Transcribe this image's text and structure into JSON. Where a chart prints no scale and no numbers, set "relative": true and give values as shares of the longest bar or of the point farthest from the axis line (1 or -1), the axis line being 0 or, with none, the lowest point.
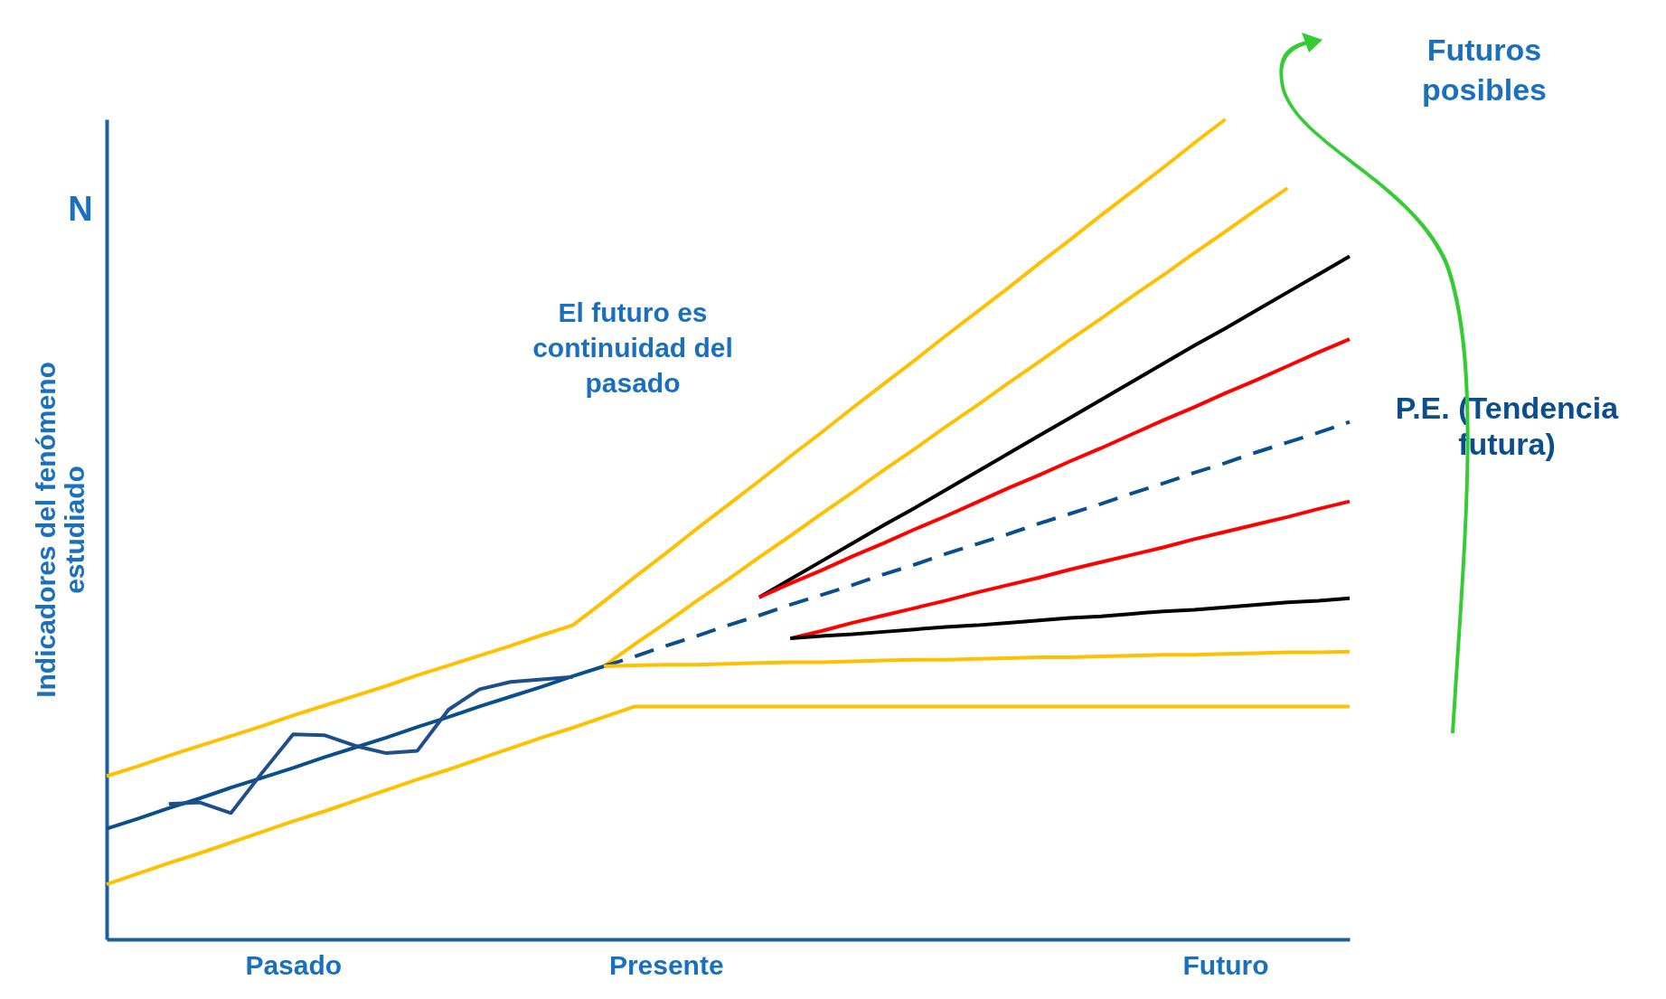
{
  "chart_data": {
    "type": "line",
    "relative": true,
    "ylabel": "Indicadores del fenómeno\nestudiado",
    "categories": [
      null,
      null,
      null,
      null,
      null,
      null,
      "Pasado",
      null,
      null,
      null,
      null,
      null,
      null,
      null,
      null,
      null,
      null,
      null,
      "Presente",
      null,
      null,
      null,
      null,
      null,
      null,
      null,
      null,
      null,
      null,
      null,
      null,
      null,
      null,
      null,
      null,
      null,
      "Futuro",
      null,
      null,
      null,
      null
    ],
    "tick_labels": "x",
    "grid": false,
    "marker": "none",
    "annotations": [
      "N",
      "El futuro es\ncontinuidad del\npasado",
      "Futuros\nposibles"
    ],
    "series": [
      {
        "color": "#ffc000",
        "line_style": "solid",
        "values": [
          0.199,
          0.211,
          0.224,
          0.236,
          0.248,
          0.26,
          0.273,
          0.285,
          0.297,
          0.309,
          0.322,
          0.334,
          0.346,
          0.358,
          0.371,
          0.383,
          0.412,
          0.442,
          0.471,
          0.501,
          0.53,
          0.559,
          0.589,
          0.618,
          0.648,
          0.677,
          0.706,
          0.736,
          0.765,
          0.794,
          0.824,
          0.853,
          0.883,
          0.912,
          0.941,
          0.971,
          1,
          null,
          null,
          null,
          null
        ]
      },
      {
        "color": "#ffc000",
        "line_style": "solid",
        "values": [
          null,
          null,
          null,
          null,
          null,
          null,
          null,
          null,
          null,
          null,
          null,
          null,
          null,
          null,
          null,
          null,
          0.333,
          0.36,
          0.386,
          0.413,
          0.439,
          0.466,
          0.492,
          0.519,
          0.545,
          0.572,
          0.598,
          0.625,
          0.651,
          0.678,
          0.704,
          0.731,
          0.757,
          0.784,
          0.81,
          0.837,
          0.863,
          0.89,
          0.916,
          null,
          null
        ]
      },
      {
        "color": "#000000",
        "line_style": "solid",
        "values": [
          null,
          null,
          null,
          null,
          null,
          null,
          null,
          null,
          null,
          null,
          null,
          null,
          null,
          null,
          null,
          null,
          null,
          null,
          null,
          null,
          null,
          0.417,
          0.439,
          0.461,
          0.483,
          0.505,
          0.526,
          0.548,
          0.57,
          0.592,
          0.614,
          0.636,
          0.658,
          0.68,
          0.702,
          0.724,
          0.745,
          0.767,
          0.789,
          0.811,
          0.833
        ]
      },
      {
        "color": "#ff0000",
        "line_style": "solid",
        "values": [
          null,
          null,
          null,
          null,
          null,
          null,
          null,
          null,
          null,
          null,
          null,
          null,
          null,
          null,
          null,
          null,
          null,
          null,
          null,
          null,
          null,
          0.417,
          0.434,
          0.45,
          0.467,
          0.483,
          0.5,
          0.516,
          0.533,
          0.55,
          0.566,
          0.583,
          0.599,
          0.616,
          0.633,
          0.649,
          0.666,
          0.682,
          0.699,
          0.716,
          0.732
        ]
      },
      {
        "name": "P.E. (Tendencia\nfutura)",
        "color": "#0a4f8c",
        "line_style": "dashed",
        "values": [
          null,
          null,
          null,
          null,
          null,
          null,
          null,
          null,
          null,
          null,
          null,
          null,
          null,
          null,
          null,
          null,
          0.333,
          0.345,
          0.358,
          0.37,
          0.383,
          0.395,
          0.408,
          0.42,
          0.432,
          0.445,
          0.457,
          0.47,
          0.482,
          0.494,
          0.507,
          0.519,
          0.531,
          0.544,
          0.556,
          0.569,
          0.581,
          0.594,
          0.606,
          0.618,
          0.631
        ]
      },
      {
        "color": "#ff0000",
        "line_style": "solid",
        "values": [
          null,
          null,
          null,
          null,
          null,
          null,
          null,
          null,
          null,
          null,
          null,
          null,
          null,
          null,
          null,
          null,
          null,
          null,
          null,
          null,
          null,
          null,
          0.367,
          0.376,
          0.386,
          0.395,
          0.404,
          0.413,
          0.423,
          0.432,
          0.441,
          0.451,
          0.46,
          0.469,
          0.478,
          0.488,
          0.497,
          0.506,
          0.515,
          0.525,
          0.534
        ]
      },
      {
        "color": "#000000",
        "line_style": "solid",
        "values": [
          null,
          null,
          null,
          null,
          null,
          null,
          null,
          null,
          null,
          null,
          null,
          null,
          null,
          null,
          null,
          null,
          null,
          null,
          null,
          null,
          null,
          null,
          0.367,
          0.37,
          0.372,
          0.375,
          0.378,
          0.381,
          0.383,
          0.386,
          0.389,
          0.392,
          0.394,
          0.397,
          0.4,
          0.402,
          0.405,
          0.408,
          0.411,
          0.413,
          0.416
        ]
      },
      {
        "color": "#ffc000",
        "line_style": "solid",
        "values": [
          null,
          null,
          null,
          null,
          null,
          null,
          null,
          null,
          null,
          null,
          null,
          null,
          null,
          null,
          null,
          null,
          0.333,
          0.334,
          0.335,
          0.335,
          0.336,
          0.337,
          0.338,
          0.338,
          0.339,
          0.34,
          0.341,
          0.341,
          0.342,
          0.343,
          0.344,
          0.344,
          0.345,
          0.346,
          0.347,
          0.347,
          0.348,
          0.349,
          0.35,
          0.35,
          0.351
        ]
      },
      {
        "color": "#ffc000",
        "line_style": "solid",
        "values": [
          0.067,
          0.08,
          0.093,
          0.105,
          0.118,
          0.131,
          0.144,
          0.156,
          0.169,
          0.182,
          0.195,
          0.207,
          0.22,
          0.233,
          0.246,
          0.258,
          0.271,
          0.284,
          0.284,
          0.284,
          0.284,
          0.284,
          0.284,
          0.284,
          0.284,
          0.284,
          0.284,
          0.284,
          0.284,
          0.284,
          0.284,
          0.284,
          0.284,
          0.284,
          0.284,
          0.284,
          0.284,
          0.284,
          0.284,
          0.284,
          0.284
        ]
      },
      {
        "color": "#0a4f8c",
        "line_style": "solid",
        "values": [
          0.135,
          0.147,
          0.16,
          0.172,
          0.185,
          0.197,
          0.209,
          0.222,
          0.234,
          0.246,
          0.259,
          0.271,
          0.284,
          0.296,
          0.308,
          0.321,
          0.333,
          null,
          null,
          null,
          null,
          null,
          null,
          null,
          null,
          null,
          null,
          null,
          null,
          null,
          null,
          null,
          null,
          null,
          null,
          null,
          null,
          null,
          null,
          null,
          null
        ]
      },
      {
        "color": "#1f4e8c",
        "line_style": "solid",
        "values": [
          null,
          null,
          0.165,
          0.167,
          0.154,
          0.203,
          0.25,
          0.249,
          0.236,
          0.227,
          0.23,
          0.28,
          0.305,
          0.314,
          0.317,
          0.32,
          null,
          null,
          null,
          null,
          null,
          null,
          null,
          null,
          null,
          null,
          null,
          null,
          null,
          null,
          null,
          null,
          null,
          null,
          null,
          null,
          null,
          null,
          null,
          null,
          null
        ]
      }
    ]
  }
}
